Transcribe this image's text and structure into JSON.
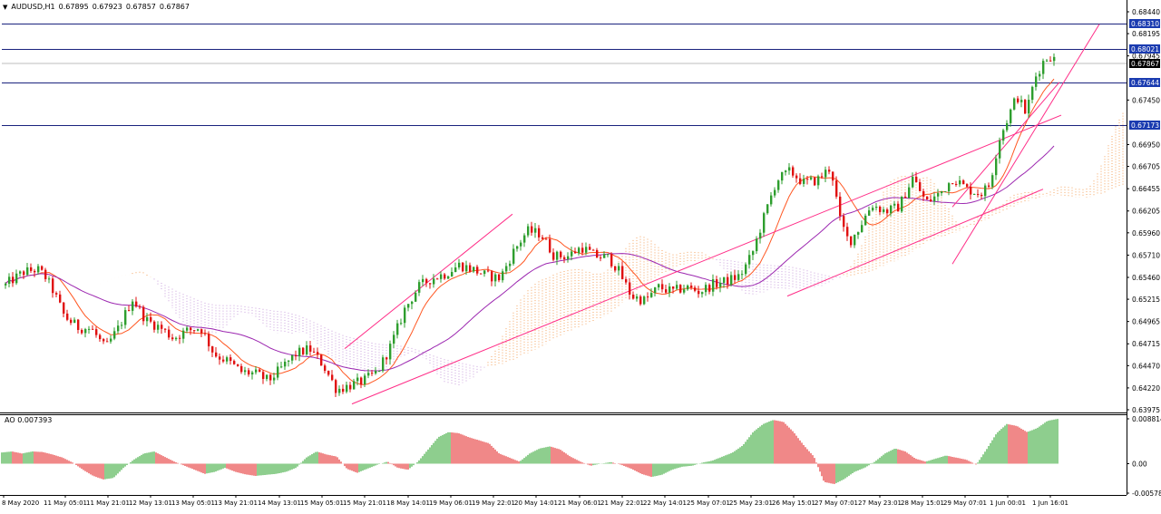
{
  "header": {
    "symbol": "AUDUSD,H1",
    "open": "0.67895",
    "high": "0.67923",
    "low": "0.67857",
    "close": "0.67867"
  },
  "ao_indicator": {
    "label": "AO",
    "value": "0.007393"
  },
  "chart_data": {
    "type": "candlestick",
    "symbol": "AUDUSD",
    "timeframe": "H1",
    "price_axis": {
      "ticks": [
        "0.68440",
        "0.68195",
        "0.67945",
        "0.67450",
        "0.66950",
        "0.66705",
        "0.66455",
        "0.66205",
        "0.65960",
        "0.65710",
        "0.65460",
        "0.65215",
        "0.64965",
        "0.64715",
        "0.64470",
        "0.64220",
        "0.63975"
      ],
      "ylim": [
        0.63975,
        0.6844
      ]
    },
    "current_price": "0.67867",
    "horizontal_levels": [
      {
        "label": "0.68310",
        "value": 0.6831
      },
      {
        "label": "0.68021",
        "value": 0.68021
      },
      {
        "label": "0.67644",
        "value": 0.67644
      },
      {
        "label": "0.67173",
        "value": 0.67173
      }
    ],
    "time_axis": [
      "8 May 2020",
      "11 May 05:01",
      "11 May 21:01",
      "12 May 13:01",
      "13 May 05:01",
      "13 May 21:01",
      "14 May 13:01",
      "15 May 05:01",
      "15 May 21:01",
      "18 May 14:01",
      "19 May 06:01",
      "19 May 22:01",
      "20 May 14:01",
      "21 May 06:01",
      "21 May 22:01",
      "22 May 14:01",
      "25 May 07:01",
      "25 May 23:01",
      "26 May 15:01",
      "27 May 07:01",
      "27 May 23:01",
      "28 May 15:01",
      "29 May 07:01",
      "1 Jun 00:01",
      "1 Jun 16:01"
    ],
    "price_path": [
      [
        0,
        0.6532
      ],
      [
        8,
        0.654
      ],
      [
        25,
        0.6552
      ],
      [
        40,
        0.6555
      ],
      [
        48,
        0.6548
      ],
      [
        58,
        0.653
      ],
      [
        70,
        0.6502
      ],
      [
        85,
        0.649
      ],
      [
        100,
        0.6488
      ],
      [
        115,
        0.6466
      ],
      [
        130,
        0.649
      ],
      [
        145,
        0.6522
      ],
      [
        160,
        0.6498
      ],
      [
        175,
        0.649
      ],
      [
        190,
        0.6478
      ],
      [
        205,
        0.6486
      ],
      [
        220,
        0.649
      ],
      [
        235,
        0.646
      ],
      [
        250,
        0.6452
      ],
      [
        265,
        0.644
      ],
      [
        280,
        0.6438
      ],
      [
        295,
        0.643
      ],
      [
        310,
        0.6445
      ],
      [
        325,
        0.646
      ],
      [
        340,
        0.6466
      ],
      [
        355,
        0.6448
      ],
      [
        370,
        0.642
      ],
      [
        385,
        0.6425
      ],
      [
        400,
        0.643
      ],
      [
        415,
        0.644
      ],
      [
        430,
        0.647
      ],
      [
        445,
        0.651
      ],
      [
        460,
        0.6535
      ],
      [
        475,
        0.6545
      ],
      [
        490,
        0.655
      ],
      [
        505,
        0.656
      ],
      [
        520,
        0.6555
      ],
      [
        535,
        0.6548
      ],
      [
        550,
        0.6545
      ],
      [
        565,
        0.6575
      ],
      [
        580,
        0.6598
      ],
      [
        595,
        0.6595
      ],
      [
        610,
        0.657
      ],
      [
        625,
        0.657
      ],
      [
        640,
        0.658
      ],
      [
        655,
        0.657
      ],
      [
        670,
        0.6568
      ],
      [
        680,
        0.6555
      ],
      [
        695,
        0.6525
      ],
      [
        710,
        0.652
      ],
      [
        725,
        0.6535
      ],
      [
        740,
        0.653
      ],
      [
        755,
        0.6535
      ],
      [
        770,
        0.653
      ],
      [
        785,
        0.6538
      ],
      [
        800,
        0.6542
      ],
      [
        815,
        0.6548
      ],
      [
        828,
        0.6572
      ],
      [
        840,
        0.661
      ],
      [
        855,
        0.6655
      ],
      [
        870,
        0.6665
      ],
      [
        885,
        0.6652
      ],
      [
        900,
        0.6655
      ],
      [
        915,
        0.667
      ],
      [
        925,
        0.661
      ],
      [
        935,
        0.6585
      ],
      [
        945,
        0.66
      ],
      [
        960,
        0.6628
      ],
      [
        975,
        0.662
      ],
      [
        990,
        0.6625
      ],
      [
        1005,
        0.6658
      ],
      [
        1020,
        0.663
      ],
      [
        1035,
        0.664
      ],
      [
        1050,
        0.6658
      ],
      [
        1065,
        0.6645
      ],
      [
        1080,
        0.664
      ],
      [
        1090,
        0.665
      ],
      [
        1100,
        0.67
      ],
      [
        1110,
        0.6725
      ],
      [
        1120,
        0.675
      ],
      [
        1130,
        0.673
      ],
      [
        1140,
        0.677
      ],
      [
        1150,
        0.679
      ],
      [
        1158,
        0.6795
      ],
      [
        1163,
        0.6787
      ]
    ],
    "trend_lines": [
      [
        [
          380,
          0.6466
        ],
        [
          565,
          0.6617
        ]
      ],
      [
        [
          388,
          0.6404
        ],
        [
          1170,
          0.6728
        ]
      ],
      [
        [
          868,
          0.6525
        ],
        [
          1150,
          0.6645
        ]
      ],
      [
        [
          1050,
          0.6561
        ],
        [
          1212,
          0.683
        ]
      ],
      [
        [
          1050,
          0.6625
        ],
        [
          1168,
          0.6765
        ]
      ]
    ],
    "ao_axis": {
      "ticks": [
        "0.008814",
        "0.00",
        "-0.005786"
      ],
      "ylim": [
        -0.005786,
        0.008814
      ]
    },
    "ao_values": [
      0.0022,
      0.0024,
      0.002,
      0.0024,
      0.0023,
      0.0018,
      0.0012,
      0.0002,
      -0.0012,
      -0.0024,
      -0.0031,
      -0.0028,
      -0.0008,
      0.0008,
      0.002,
      0.0024,
      0.0014,
      0.0004,
      -0.0004,
      -0.0012,
      -0.002,
      -0.0016,
      -0.0008,
      -0.0016,
      -0.0021,
      -0.0024,
      -0.0022,
      -0.002,
      -0.0016,
      -0.0008,
      0.0012,
      0.0024,
      0.0018,
      0.0014,
      -0.001,
      -0.0018,
      -0.001,
      -0.0002,
      0.0004,
      -0.0008,
      -0.0012,
      0.0004,
      0.0028,
      0.0052,
      0.0062,
      0.006,
      0.0052,
      0.0046,
      0.004,
      0.002,
      0.0012,
      0.0004,
      0.002,
      0.003,
      0.0034,
      0.0028,
      0.0014,
      0.0004,
      -0.0004,
      0.0,
      0.0003,
      -0.0002,
      -0.001,
      -0.002,
      -0.0026,
      -0.0022,
      -0.0012,
      -0.0006,
      -0.0004,
      0.0002,
      0.0006,
      0.0014,
      0.0022,
      0.0036,
      0.0062,
      0.0078,
      0.0086,
      0.0082,
      0.0062,
      0.0036,
      0.0014,
      -0.0036,
      -0.004,
      -0.003,
      -0.0016,
      -0.0008,
      0.0004,
      0.002,
      0.003,
      0.0024,
      0.001,
      0.0004,
      0.001,
      0.0016,
      0.0012,
      0.0008,
      -0.0002,
      0.0028,
      0.006,
      0.0078,
      0.0074,
      0.0062,
      0.007,
      0.0084,
      0.0088
    ]
  }
}
